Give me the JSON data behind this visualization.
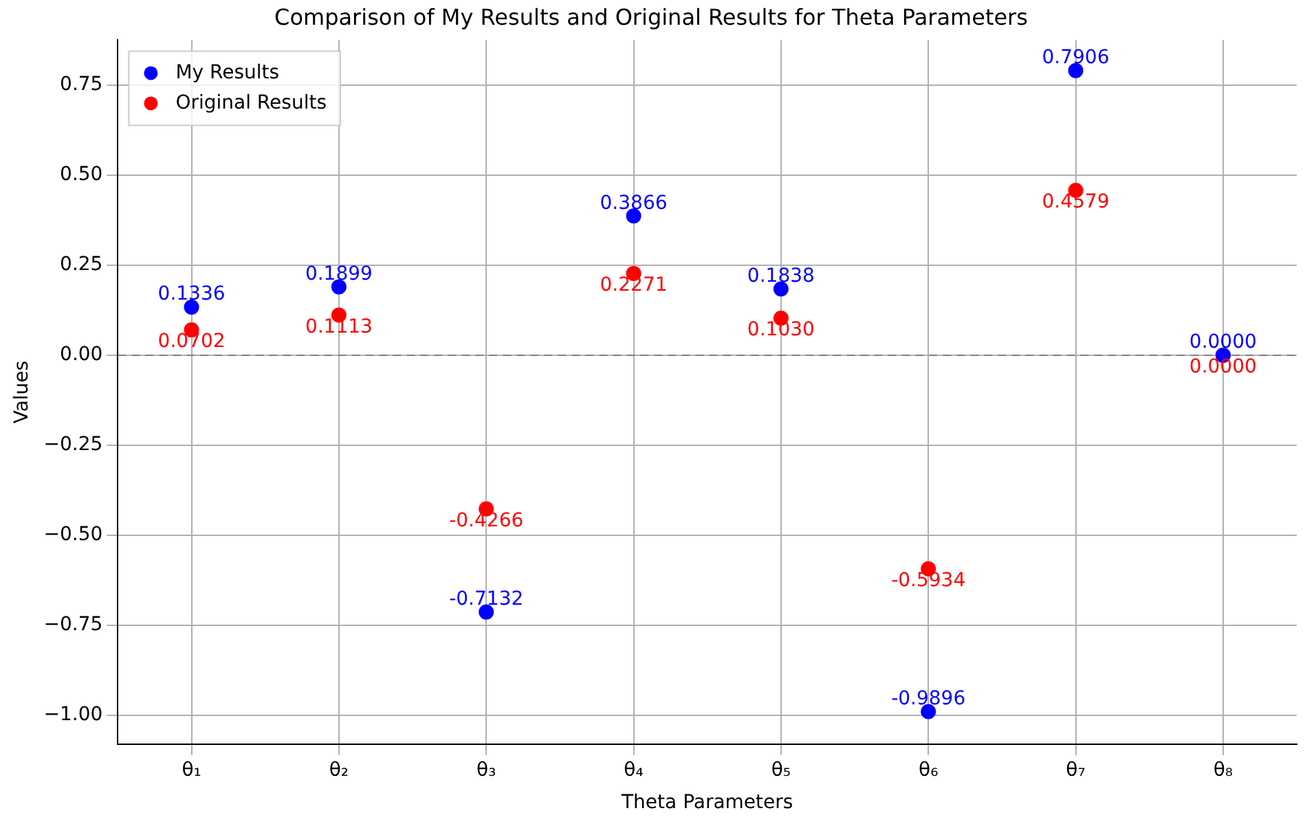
{
  "chart_data": {
    "type": "scatter",
    "title": "Comparison of My Results and Original Results for Theta Parameters",
    "xlabel": "Theta Parameters",
    "ylabel": "Values",
    "categories": [
      "θ₁",
      "θ₂",
      "θ₃",
      "θ₄",
      "θ₅",
      "θ₆",
      "θ₇",
      "θ₈"
    ],
    "series": [
      {
        "name": "My Results",
        "color": "#0000ff",
        "values": [
          0.1336,
          0.1899,
          -0.7132,
          0.3866,
          0.1838,
          -0.9896,
          0.7906,
          0.0
        ],
        "value_labels": [
          "0.1336",
          "0.1899",
          "-0.7132",
          "0.3866",
          "0.1838",
          "-0.9896",
          "0.7906",
          "0.0000"
        ]
      },
      {
        "name": "Original Results",
        "color": "#ff0000",
        "values": [
          0.0702,
          0.1113,
          -0.4266,
          0.2271,
          0.103,
          -0.5934,
          0.4579,
          0.0
        ],
        "value_labels": [
          "0.0702",
          "0.1113",
          "-0.4266",
          "0.2271",
          "0.1030",
          "-0.5934",
          "0.4579",
          "0.0000"
        ]
      }
    ],
    "ylim": [
      -1.08,
      0.875
    ],
    "yticks": [
      {
        "value": -1,
        "label": "−1.00"
      },
      {
        "value": -0.75,
        "label": "−0.75"
      },
      {
        "value": -0.5,
        "label": "−0.50"
      },
      {
        "value": -0.25,
        "label": "−0.25"
      },
      {
        "value": 0,
        "label": "0.00"
      },
      {
        "value": 0.25,
        "label": "0.25"
      },
      {
        "value": 0.5,
        "label": "0.50"
      },
      {
        "value": 0.75,
        "label": "0.75"
      }
    ],
    "ref_lines": [
      {
        "axis": "y",
        "value": 0,
        "color": "#808080",
        "line_style": "dashed"
      }
    ],
    "grid": true,
    "legend": "top left",
    "marker": "circle"
  }
}
